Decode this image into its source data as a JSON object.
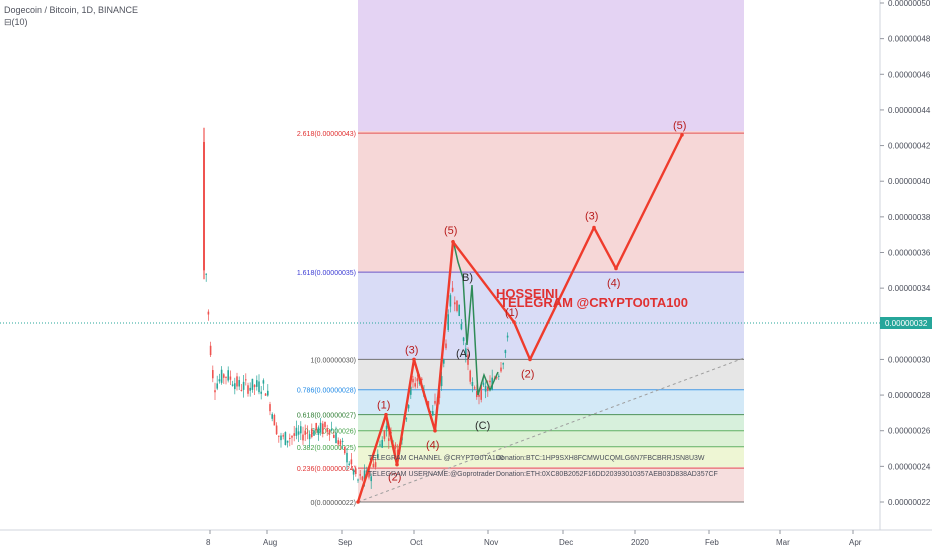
{
  "header": {
    "title": "Dogecoin / Bitcoin, 1D, BINANCE",
    "volume_label": "(10)"
  },
  "chart_data": {
    "type": "line",
    "title": "Dogecoin / Bitcoin, 1D, BINANCE",
    "x_ticks": [
      "8",
      "Aug",
      "Sep",
      "Oct",
      "Nov",
      "Dec",
      "2020",
      "Feb",
      "Mar",
      "Apr"
    ],
    "y_ticks": [
      "0.00000050",
      "0.00000048",
      "0.00000046",
      "0.00000044",
      "0.00000042",
      "0.00000040",
      "0.00000038",
      "0.00000036",
      "0.00000034",
      "0.00000032",
      "0.00000030",
      "0.00000028",
      "0.00000026",
      "0.00000024",
      "0.00000022"
    ],
    "y_range": [
      2.15e-07,
      5e-07
    ],
    "current_price": "0.00000032",
    "current_price_value": 3.2e-07,
    "fib_levels": [
      {
        "label": "2.618(0.00000043)",
        "value": 4.27e-07,
        "color": "#e03131"
      },
      {
        "label": "1.618(0.00000035)",
        "value": 3.49e-07,
        "color": "#3b3bd4"
      },
      {
        "label": "1(0.00000030)",
        "value": 3e-07,
        "color": "#555555"
      },
      {
        "label": "0.786(0.00000028)",
        "value": 2.83e-07,
        "color": "#1e88e5"
      },
      {
        "label": "0.618(0.00000027)",
        "value": 2.69e-07,
        "color": "#2e7d32"
      },
      {
        "label": "0.5(0.00000026)",
        "value": 2.6e-07,
        "color": "#43a047"
      },
      {
        "label": "0.382(0.00000025)",
        "value": 2.51e-07,
        "color": "#43a047"
      },
      {
        "label": "0.236(0.00000024)",
        "value": 2.39e-07,
        "color": "#e03131"
      },
      {
        "label": "0(0.00000022)",
        "value": 2.2e-07,
        "color": "#555555"
      }
    ],
    "projected_path": {
      "name": "Elliott wave projection",
      "points": [
        {
          "label": "",
          "x": "Sep",
          "y": 2.2e-07
        },
        {
          "label": "(1)",
          "x": "Sep",
          "y": 2.69e-07
        },
        {
          "label": "(2)",
          "x": "Sep",
          "y": 2.41e-07
        },
        {
          "label": "(3)",
          "x": "Oct",
          "y": 3e-07
        },
        {
          "label": "(4)",
          "x": "Oct",
          "y": 2.6e-07
        },
        {
          "label": "(5)",
          "x": "Oct",
          "y": 3.66e-07
        },
        {
          "label": "(1)",
          "x": "Nov",
          "y": 3.21e-07
        },
        {
          "label": "(2)",
          "x": "Nov",
          "y": 3e-07
        },
        {
          "label": "(3)",
          "x": "Dec",
          "y": 3.74e-07
        },
        {
          "label": "(4)",
          "x": "Jan",
          "y": 3.51e-07
        },
        {
          "label": "(5)",
          "x": "Jan",
          "y": 4.26e-07
        }
      ]
    },
    "corrective_labels": [
      "(A)",
      "B)",
      "(C)"
    ],
    "annotations": {
      "brand_line1": "HOSSEINI",
      "brand_line2": "TELEGRAM @CRYPTO0TA100",
      "channel": "TELEGRAM CHANNEL @CRYPTO0TA100",
      "username": "TELEGRAM USERNAME:@Goprotrader",
      "donation_btc": "Donation:BTC:1HP9SXH8FCMWUCQMLG6N7FBCBRRJSN8U3W",
      "donation_eth": "Donation:ETH:0XC80B2052F16DD20393010357AEB03D838AD357CF"
    }
  }
}
